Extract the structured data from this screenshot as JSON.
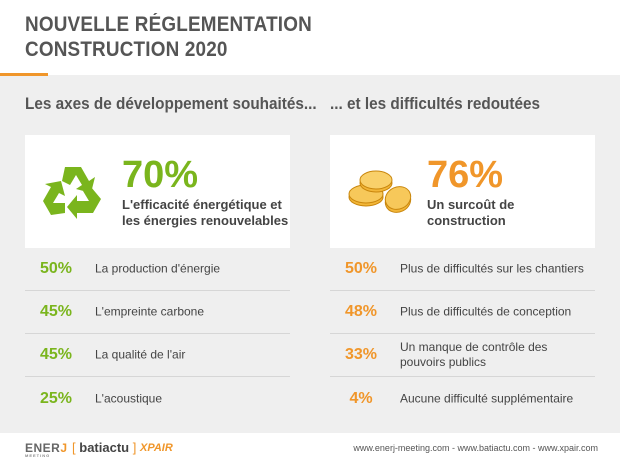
{
  "header": {
    "title_line1": "NOUVELLE RÉGLEMENTATION",
    "title_line2": "CONSTRUCTION 2020"
  },
  "left": {
    "section_title": "Les axes de développement souhaités...",
    "icon": "recycle-icon",
    "highlight_pct": "70%",
    "highlight_desc_line1": "L'efficacité énergétique et",
    "highlight_desc_line2": "les énergies renouvelables",
    "color": "#7ab51d",
    "items": [
      {
        "pct": "50%",
        "label": "La production d'énergie"
      },
      {
        "pct": "45%",
        "label": "L'empreinte carbone"
      },
      {
        "pct": "45%",
        "label": "La qualité de l'air"
      },
      {
        "pct": "25%",
        "label": "L'acoustique"
      }
    ]
  },
  "right": {
    "section_title": "... et les difficultés redoutées",
    "icon": "coins-icon",
    "highlight_pct": "76%",
    "highlight_desc_line1": "Un surcoût de",
    "highlight_desc_line2": "construction",
    "color": "#f0962a",
    "items": [
      {
        "pct": "50%",
        "label": "Plus de difficultés sur les chantiers"
      },
      {
        "pct": "48%",
        "label": "Plus de difficultés de conception"
      },
      {
        "pct": "33%",
        "label": "Un manque de contrôle des pouvoirs publics"
      },
      {
        "pct": "4%",
        "label": "Aucune difficulté supplémentaire"
      }
    ]
  },
  "footer": {
    "logo_ener": "ENER",
    "logo_ener_sub": "MEETING",
    "logo_batiactu": "batiactu",
    "logo_xpair": "XPAIR",
    "urls": "www.enerj-meeting.com - www.batiactu.com - www.xpair.com"
  }
}
